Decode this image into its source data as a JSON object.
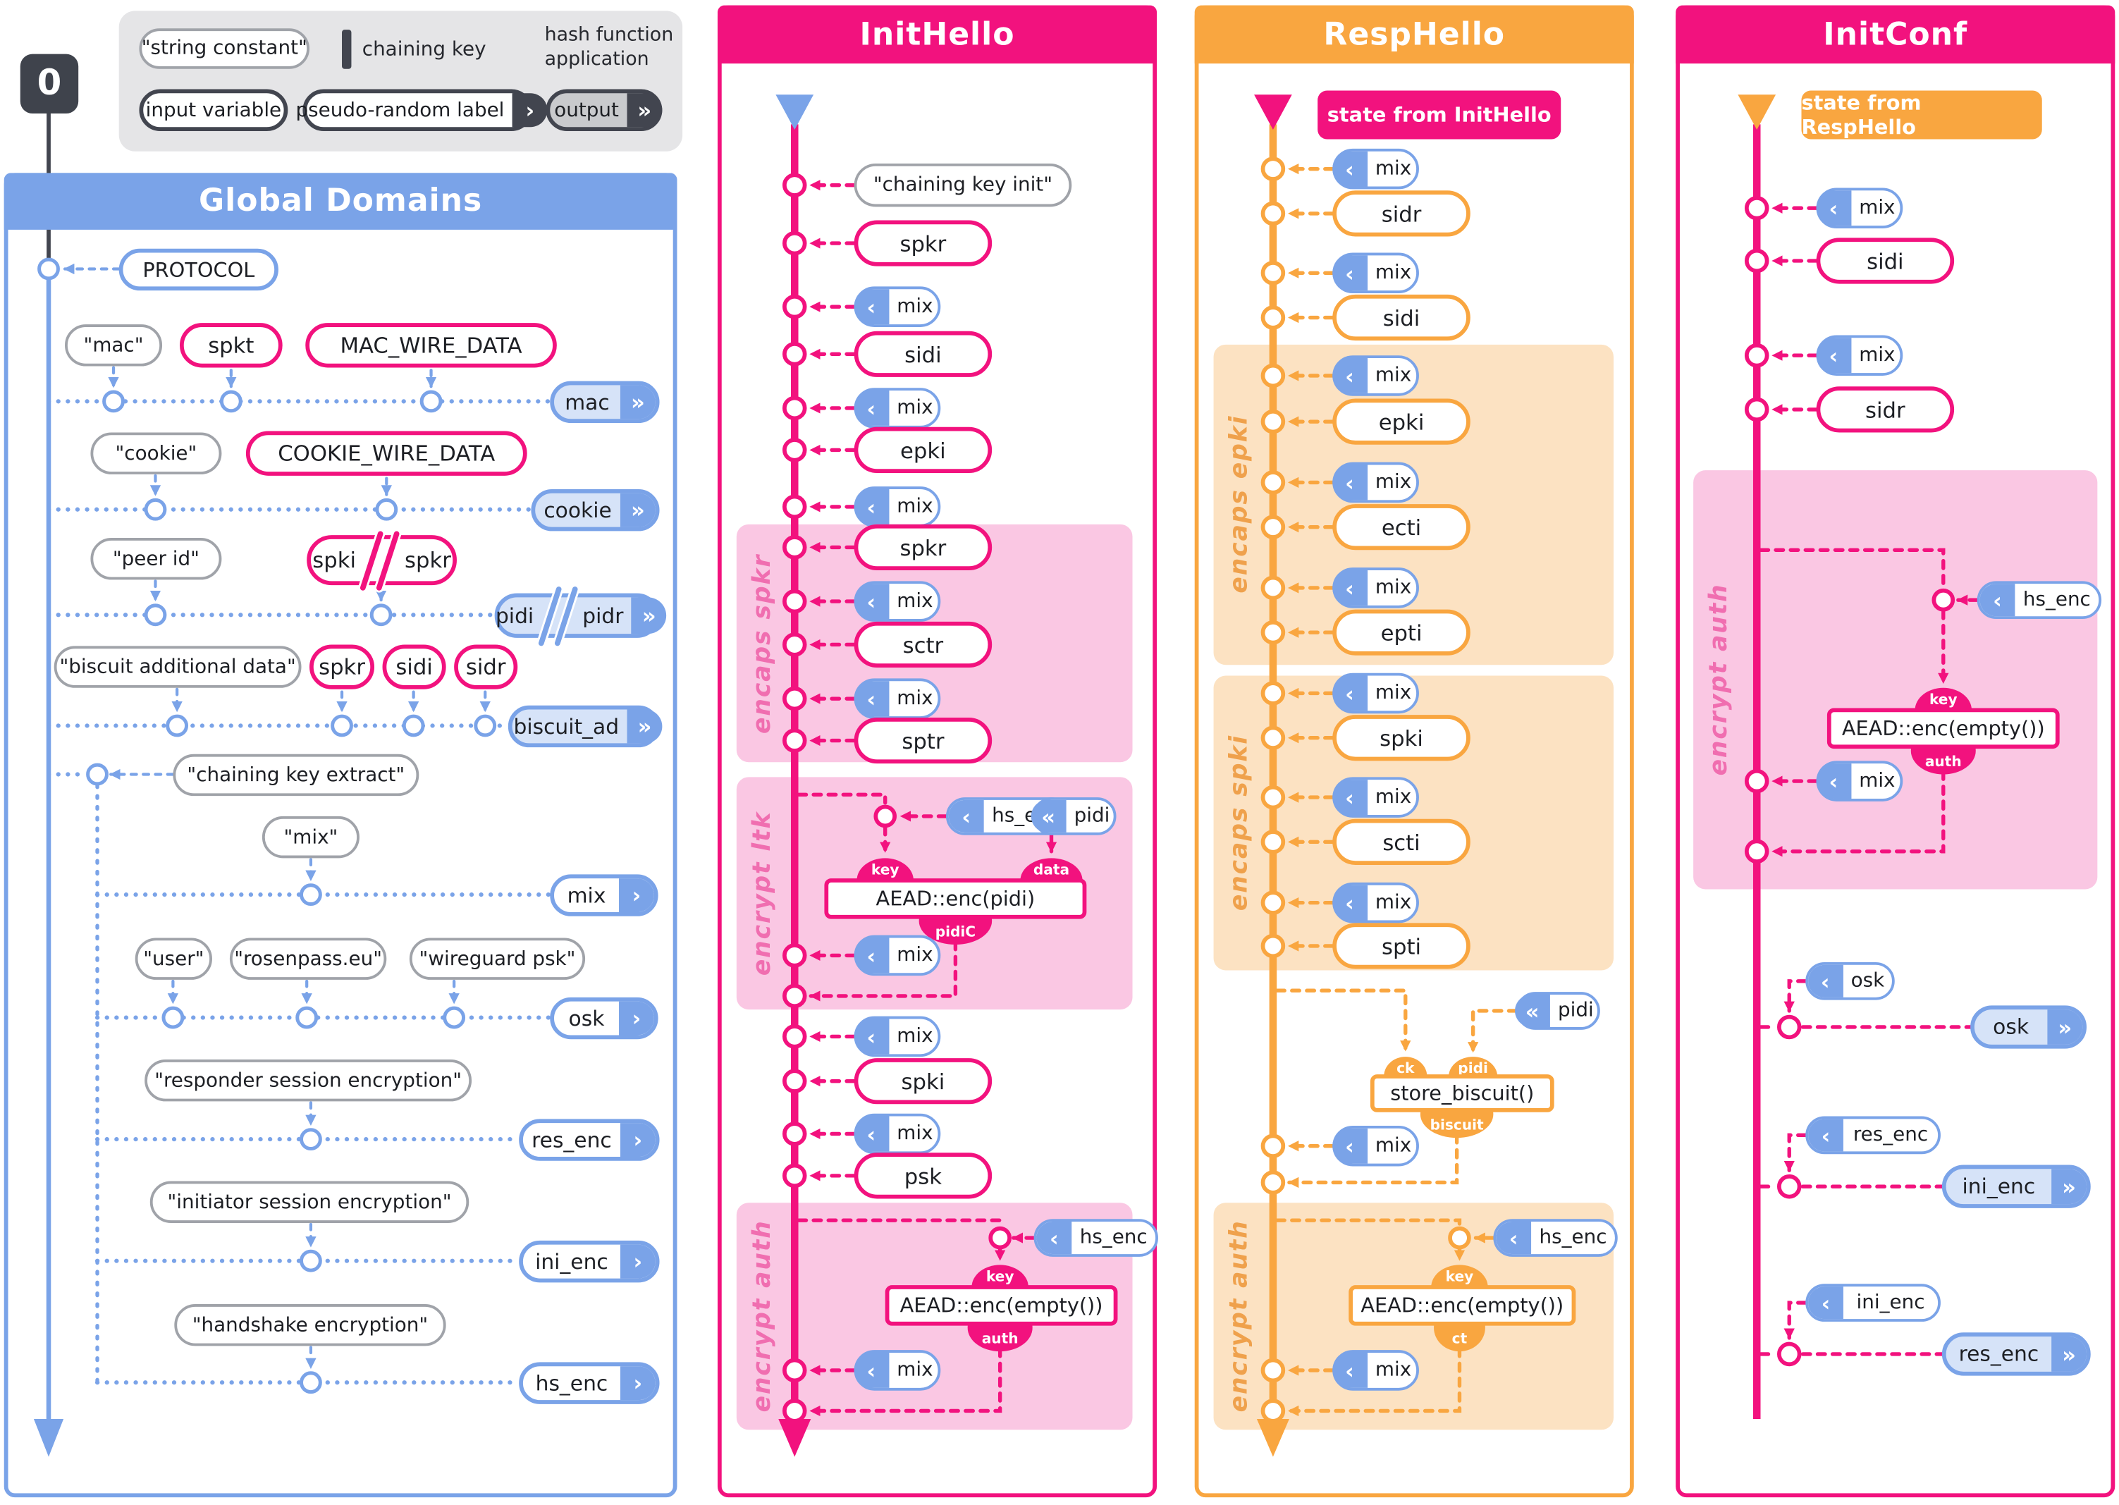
{
  "colors": {
    "blue": "#7AA3E8",
    "blueFill": "#D6E3F8",
    "pink": "#F2127E",
    "pinkFill": "#FAC7E3",
    "pinkLabel": "#F06EB0",
    "orange": "#F9A640",
    "orangeFill": "#FCE2C2",
    "orangeLabel": "#EFA14C",
    "gray": "#A0A3A9",
    "dark": "#42454F",
    "legendBg": "#E5E5E7",
    "legendPillFill": "#C9CACD",
    "text": "#1d1f24"
  },
  "legend": {
    "zero": "0",
    "string_constant": "\"string constant\"",
    "chaining_key": "chaining key",
    "hash_fn": "hash function application",
    "input_variable": "input variable",
    "prf_label": "pseudo-random label",
    "output": "output"
  },
  "icons": {
    "chevron_in": "‹",
    "chevron_in2": "«",
    "chevron_out": "›",
    "chevron_out2": "»"
  },
  "columns": {
    "global": {
      "title": "Global Domains"
    },
    "inithello": {
      "title": "InitHello"
    },
    "resphello": {
      "title": "RespHello",
      "badge": "state from InitHello"
    },
    "initconf": {
      "title": "InitConf",
      "badge": "state from RespHello"
    }
  },
  "labels": {
    "protocol": "PROTOCOL",
    "mac_const": "\"mac\"",
    "spkt": "spkt",
    "mac_wire": "MAC_WIRE_DATA",
    "mac_out": "mac",
    "cookie_const": "\"cookie\"",
    "cookie_wire": "COOKIE_WIRE_DATA",
    "cookie_out": "cookie",
    "peer_id": "\"peer id\"",
    "spki": "spki",
    "spkr": "spkr",
    "pidi": "pidi",
    "pidr": "pidr",
    "biscuit_ad_const": "\"biscuit additional data\"",
    "sidi": "sidi",
    "sidr": "sidr",
    "biscuit_ad_out": "biscuit_ad",
    "cke": "\"chaining key extract\"",
    "mix_const": "\"mix\"",
    "mix": "mix",
    "user": "\"user\"",
    "rosenpass": "\"rosenpass.eu\"",
    "wg_psk": "\"wireguard psk\"",
    "osk": "osk",
    "rse": "\"responder session encryption\"",
    "res_enc": "res_enc",
    "ise": "\"initiator session encryption\"",
    "ini_enc": "ini_enc",
    "hse": "\"handshake encryption\"",
    "hs_enc": "hs_enc",
    "cki": "\"chaining key init\"",
    "epki": "epki",
    "sctr": "sctr",
    "sptr": "sptr",
    "psk": "psk",
    "ecti": "ecti",
    "epti": "epti",
    "scti": "scti",
    "spti": "spti",
    "key": "key",
    "data": "data",
    "auth": "auth",
    "ct": "ct",
    "ck": "ck",
    "pidiC": "pidiC",
    "biscuit": "biscuit",
    "aead_pidi": "AEAD::enc(pidi)",
    "aead_empty": "AEAD::enc(empty())",
    "store_biscuit": "store_biscuit()",
    "encaps_spkr": "encaps spkr",
    "encrypt_ltk": "encrypt ltk",
    "encrypt_auth": "encrypt auth",
    "encaps_epki": "encaps epki",
    "encaps_spki": "encaps spki"
  }
}
